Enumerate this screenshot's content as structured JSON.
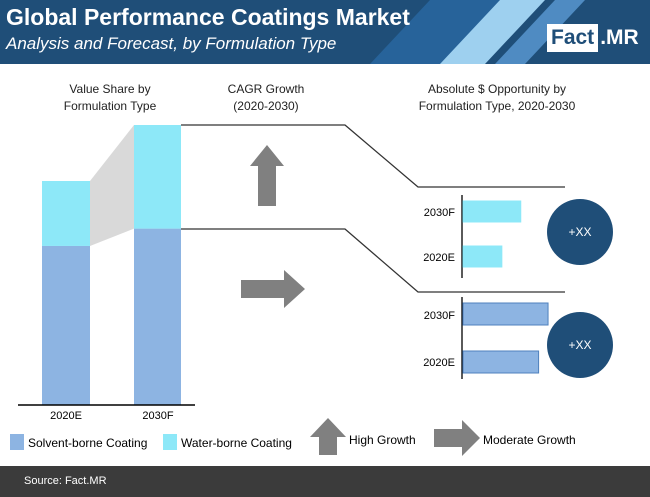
{
  "header": {
    "title": "Global Performance Coatings Market",
    "subtitle": "Analysis and Forecast, by Formulation Type",
    "logo_part1": "Fact",
    "logo_part2": ".MR",
    "bg_color": "#1f4e78",
    "stripe_color": "#9ed0ef"
  },
  "panels": {
    "value_share_title_line1": "Value Share by",
    "value_share_title_line2": "Formulation Type",
    "cagr_title_line1": "CAGR Growth",
    "cagr_title_line2": "(2020-2030)",
    "opportunity_title_line1": "Absolute $ Opportunity by",
    "opportunity_title_line2": "Formulation Type, 2020-2030"
  },
  "legend": {
    "solvent": "Solvent-borne Coating",
    "water": "Water-borne Coating",
    "high_growth": "High Growth",
    "moderate_growth": "Moderate Growth"
  },
  "growth": {
    "water_borne": "high",
    "solvent_borne": "moderate"
  },
  "opportunity_badges": {
    "water_borne": "+XX",
    "solvent_borne": "+XX"
  },
  "footer": {
    "source": "Source: Fact.MR"
  },
  "colors": {
    "solvent": "#8db4e2",
    "water": "#8de8f8",
    "arrow": "#808080",
    "badge": "#1f4e78",
    "connector": "#d9d9d9"
  },
  "chart_data": [
    {
      "type": "bar",
      "stacked": true,
      "categories": [
        "2020E",
        "2030F"
      ],
      "series": [
        {
          "name": "Solvent-borne Coating",
          "values": [
            71,
            63
          ]
        },
        {
          "name": "Water-borne Coating",
          "values": [
            29,
            37
          ]
        }
      ],
      "ylim": [
        0,
        100
      ]
    },
    {
      "type": "bar",
      "orientation": "horizontal",
      "series_name": "Water-borne Coating",
      "categories": [
        "2030F",
        "2020E"
      ],
      "values": [
        55,
        37
      ],
      "xlim": [
        0,
        100
      ]
    },
    {
      "type": "bar",
      "orientation": "horizontal",
      "series_name": "Solvent-borne Coating",
      "categories": [
        "2030F",
        "2020E"
      ],
      "values": [
        81,
        72
      ],
      "xlim": [
        0,
        100
      ]
    }
  ]
}
